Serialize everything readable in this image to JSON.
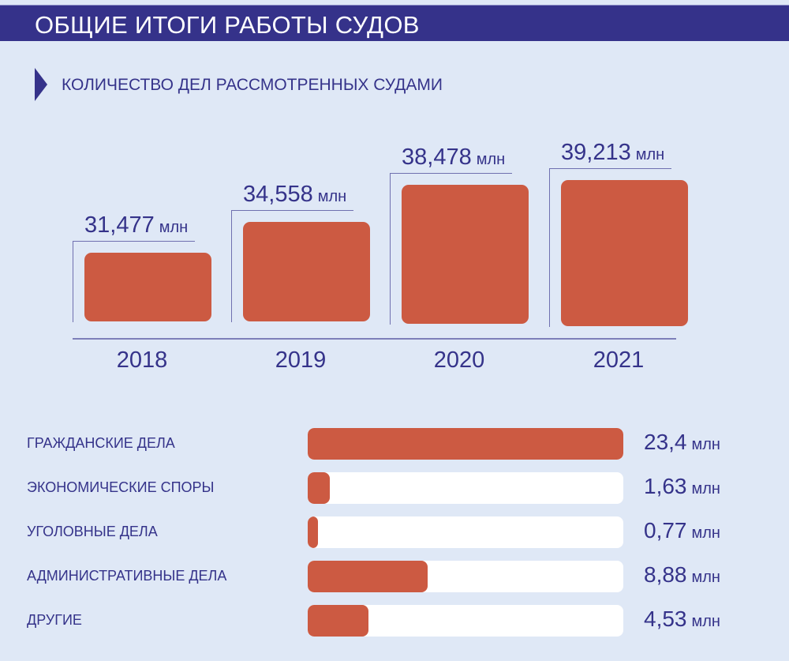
{
  "header": {
    "title": "ОБЩИЕ ИТОГИ РАБОТЫ СУДОВ"
  },
  "subtitle": "КОЛИЧЕСТВО ДЕЛ РАССМОТРЕННЫХ СУДАМИ",
  "colors": {
    "accent": "#35328a",
    "bar": "#cc5a42",
    "background": "#dfe8f6",
    "track": "#ffffff"
  },
  "chart_data": [
    {
      "type": "bar",
      "title": "КОЛИЧЕСТВО ДЕЛ РАССМОТРЕННЫХ СУДАМИ",
      "categories": [
        "2018",
        "2019",
        "2020",
        "2021"
      ],
      "values": [
        31.477,
        34.558,
        38.478,
        39.213
      ],
      "labels": [
        "31,477",
        "34,558",
        "38,478",
        "39,213"
      ],
      "unit": "млн",
      "xlabel": "",
      "ylabel": ""
    },
    {
      "type": "bar",
      "orientation": "horizontal",
      "categories": [
        "ГРАЖДАНСКИЕ ДЕЛА",
        "ЭКОНОМИЧЕСКИЕ СПОРЫ",
        "УГОЛОВНЫЕ ДЕЛА",
        "АДМИНИСТРАТИВНЫЕ ДЕЛА",
        "ДРУГИЕ"
      ],
      "values": [
        23.4,
        1.63,
        0.77,
        8.88,
        4.53
      ],
      "labels": [
        "23,4",
        "1,63",
        "0,77",
        "8,88",
        "4,53"
      ],
      "unit": "млн",
      "xlim": [
        0,
        23.4
      ]
    }
  ]
}
